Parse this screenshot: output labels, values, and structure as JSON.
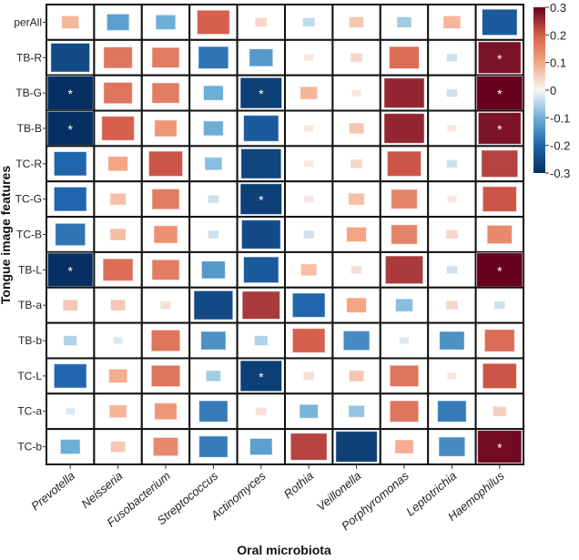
{
  "chart_data": {
    "type": "heatmap",
    "xlabel": "Oral microbiota",
    "ylabel": "Tongue image features",
    "columns": [
      "Prevotella",
      "Neisseria",
      "Fusobacterium",
      "Streptococcus",
      "Actinomyces",
      "Rothia",
      "Veillonella",
      "Porphyromonas",
      "Leptotrichia",
      "Haemophilus"
    ],
    "rows": [
      "perAll",
      "TB-R",
      "TB-G",
      "TB-B",
      "TC-R",
      "TC-G",
      "TC-B",
      "TB-L",
      "TB-a",
      "TB-b",
      "TC-L",
      "TC-a",
      "TC-b"
    ],
    "values": [
      [
        0.08,
        -0.12,
        -0.1,
        0.2,
        0.04,
        -0.04,
        0.06,
        -0.06,
        0.08,
        -0.22
      ],
      [
        -0.25,
        0.17,
        0.16,
        -0.18,
        -0.13,
        0.02,
        0.04,
        0.18,
        -0.03,
        0.28
      ],
      [
        -0.32,
        0.17,
        0.16,
        -0.1,
        -0.27,
        0.08,
        0.02,
        0.26,
        -0.03,
        0.33
      ],
      [
        -0.31,
        0.2,
        0.12,
        -0.1,
        -0.22,
        0.02,
        0.06,
        0.26,
        0.02,
        0.28
      ],
      [
        -0.2,
        0.1,
        0.21,
        -0.08,
        -0.26,
        0.02,
        0.04,
        0.21,
        -0.03,
        0.23
      ],
      [
        -0.2,
        0.07,
        0.16,
        -0.03,
        -0.27,
        0.02,
        0.07,
        0.15,
        0.02,
        0.21
      ],
      [
        -0.18,
        0.07,
        0.13,
        -0.03,
        -0.25,
        -0.03,
        0.1,
        0.15,
        0.04,
        0.14
      ],
      [
        -0.3,
        0.18,
        0.16,
        -0.13,
        -0.22,
        0.07,
        0.03,
        0.24,
        -0.03,
        0.33
      ],
      [
        0.06,
        0.06,
        0.03,
        -0.25,
        0.24,
        -0.2,
        0.1,
        -0.08,
        0.04,
        -0.03
      ],
      [
        -0.05,
        -0.02,
        0.17,
        -0.14,
        -0.05,
        0.2,
        -0.15,
        -0.02,
        -0.14,
        0.18
      ],
      [
        -0.2,
        0.09,
        0.17,
        -0.06,
        -0.27,
        0.03,
        0.06,
        0.17,
        0.02,
        0.21
      ],
      [
        -0.02,
        0.08,
        0.12,
        -0.17,
        0.03,
        -0.09,
        -0.07,
        0.17,
        -0.17,
        0.05
      ],
      [
        -0.1,
        0.06,
        0.14,
        -0.17,
        -0.12,
        0.23,
        -0.27,
        0.09,
        -0.15,
        0.29
      ]
    ],
    "significant": [
      [
        2,
        0
      ],
      [
        3,
        0
      ],
      [
        7,
        0
      ],
      [
        2,
        4
      ],
      [
        5,
        4
      ],
      [
        10,
        4
      ],
      [
        1,
        9
      ],
      [
        2,
        9
      ],
      [
        3,
        9
      ],
      [
        7,
        9
      ],
      [
        12,
        9
      ]
    ],
    "significance_marker": "*",
    "colorbar": {
      "range": [
        -0.3,
        0.3
      ],
      "ticks": [
        "0.3",
        "0.2",
        "0.1",
        "0",
        "-0.1",
        "-0.2",
        "-0.3"
      ]
    }
  }
}
